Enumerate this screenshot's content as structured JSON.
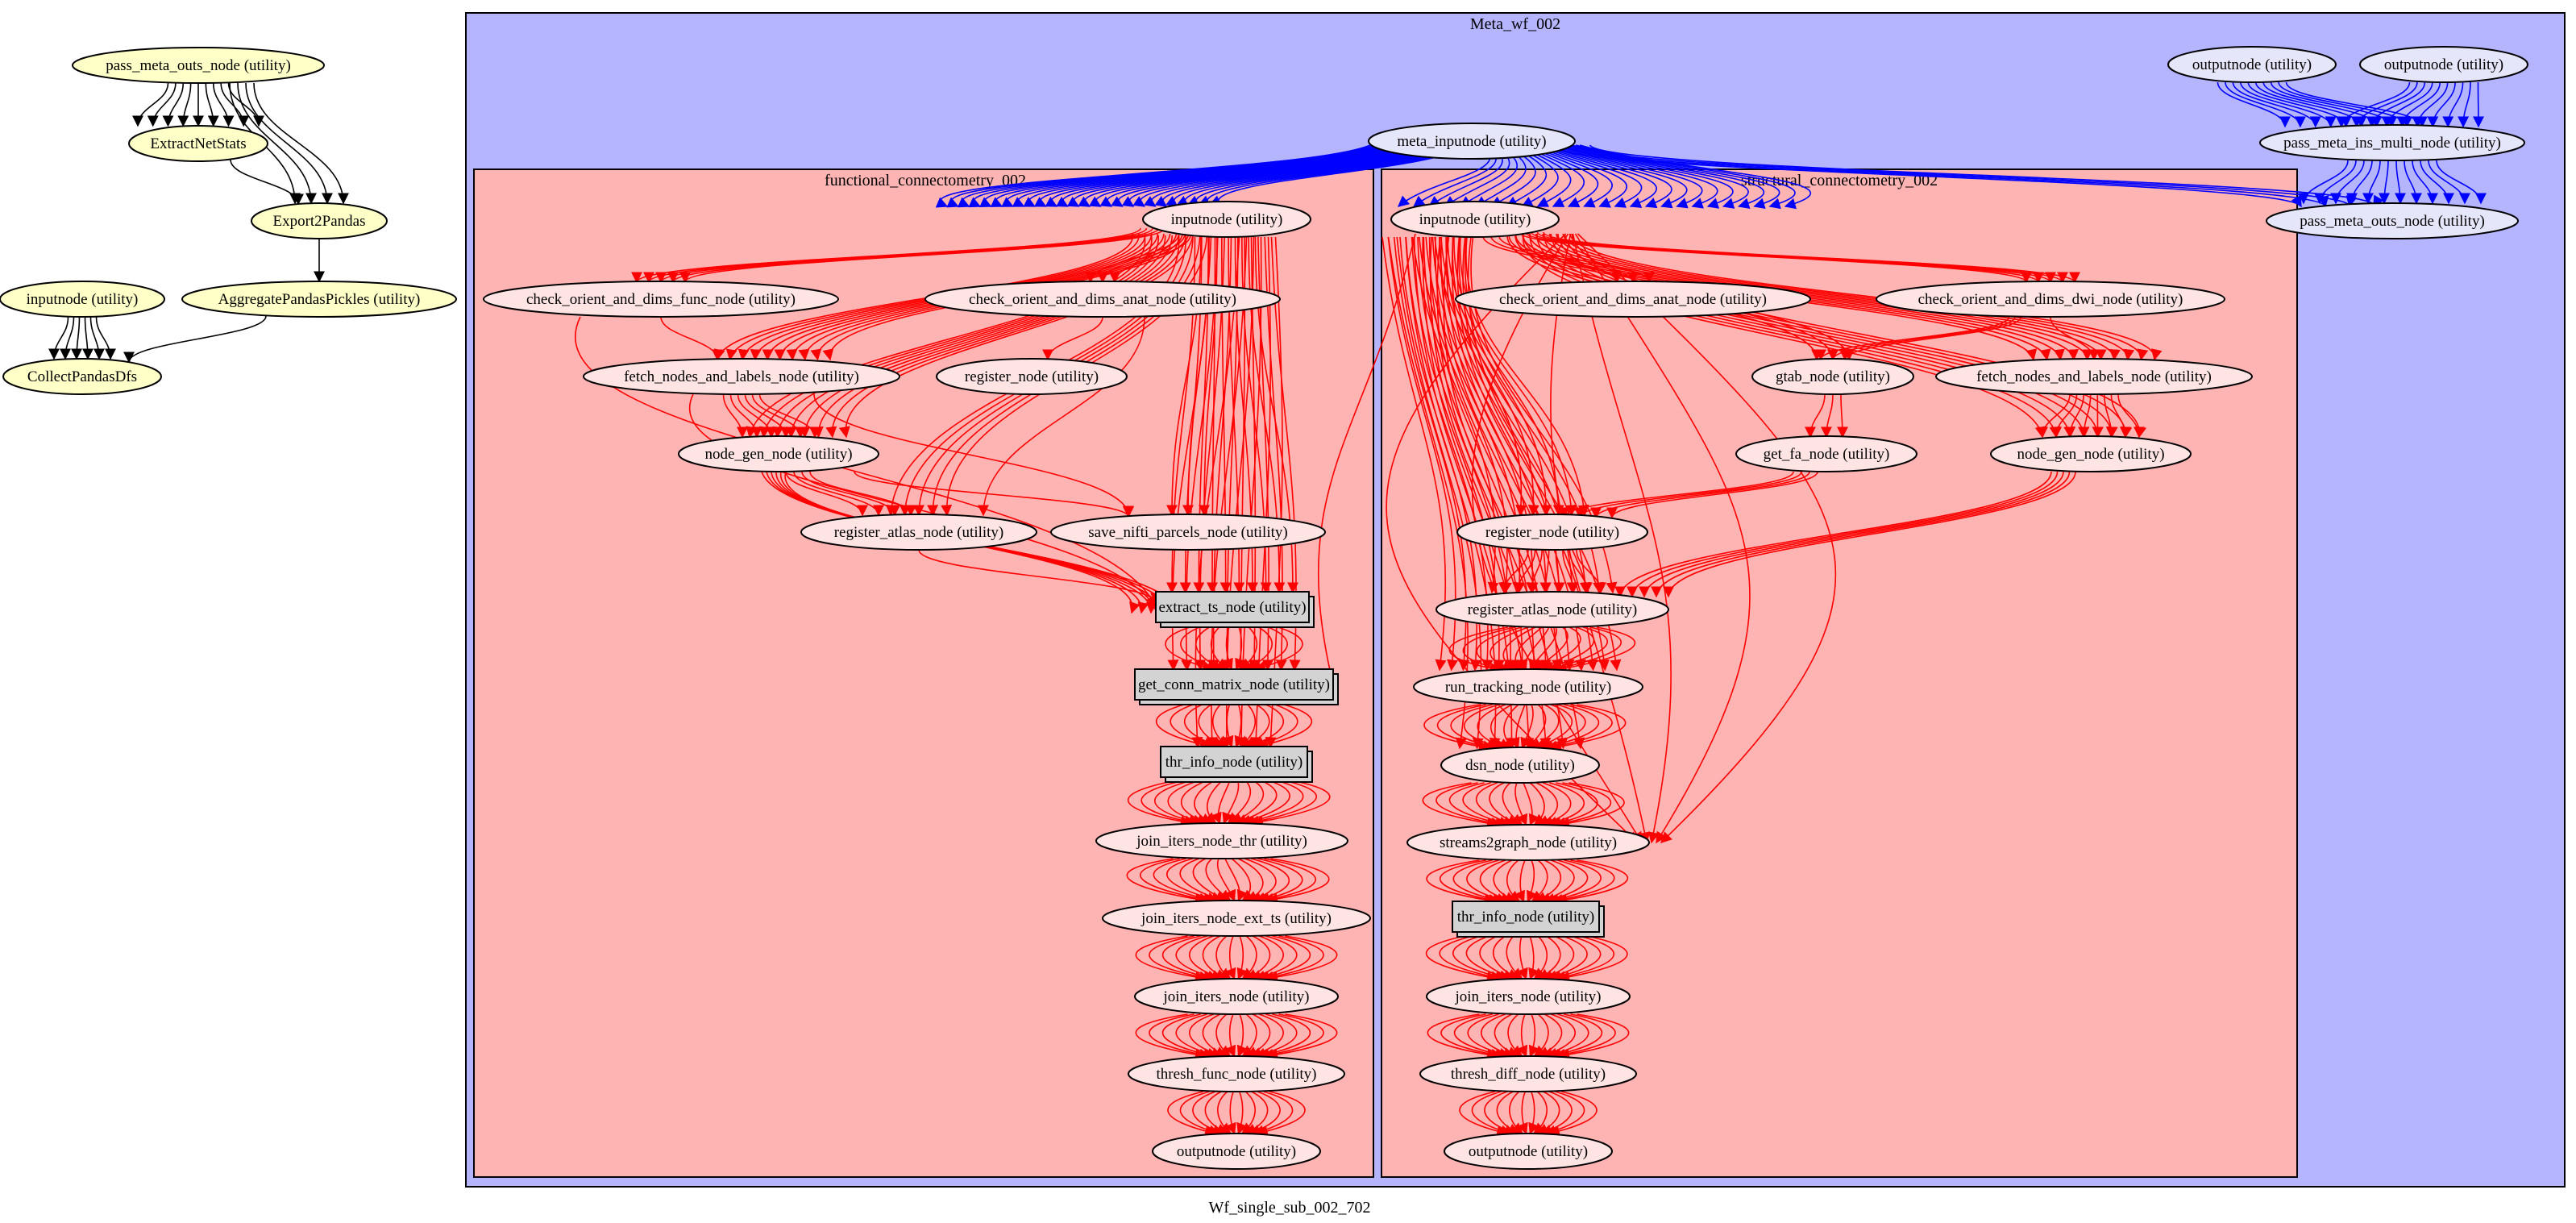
{
  "graph": {
    "label": "Wf_single_sub_002_702",
    "colors": {
      "outer_cluster_fill": "#b4b4ff",
      "inner_cluster_fill": "#ffb4b4",
      "node_yellow": "#ffffc8",
      "node_lavender": "#e6e6fa",
      "node_pink": "#ffe4e4",
      "node_gray": "#d3d3d3",
      "edge_black": "#000000",
      "edge_blue": "#0000ff",
      "edge_red": "#ff0000"
    },
    "clusters": {
      "meta": "Meta_wf_002",
      "functional": "functional_connectometry_002",
      "structural": "structural_connectometry_002"
    },
    "nodes": {
      "pass_meta_outs_left": "pass_meta_outs_node (utility)",
      "extract_net_stats": "ExtractNetStats",
      "export2pandas": "Export2Pandas",
      "aggregate_pandas_pickles": "AggregatePandasPickles (utility)",
      "inputnode_left": "inputnode (utility)",
      "collect_pandas_dfs": "CollectPandasDfs",
      "meta_inputnode": "meta_inputnode (utility)",
      "outputnode_meta_a": "outputnode (utility)",
      "outputnode_meta_b": "outputnode (utility)",
      "pass_meta_ins_multi": "pass_meta_ins_multi_node (utility)",
      "pass_meta_outs_meta": "pass_meta_outs_node (utility)",
      "f_inputnode": "inputnode (utility)",
      "f_check_orient_func": "check_orient_and_dims_func_node (utility)",
      "f_check_orient_anat": "check_orient_and_dims_anat_node (utility)",
      "f_fetch_nodes": "fetch_nodes_and_labels_node (utility)",
      "f_register_node": "register_node (utility)",
      "f_node_gen": "node_gen_node (utility)",
      "f_register_atlas": "register_atlas_node (utility)",
      "f_save_nifti": "save_nifti_parcels_node (utility)",
      "f_extract_ts": "extract_ts_node (utility)",
      "f_get_conn_matrix": "get_conn_matrix_node (utility)",
      "f_thr_info": "thr_info_node (utility)",
      "f_join_iters_thr": "join_iters_node_thr (utility)",
      "f_join_iters_ext_ts": "join_iters_node_ext_ts (utility)",
      "f_join_iters": "join_iters_node (utility)",
      "f_thresh_func": "thresh_func_node (utility)",
      "f_outputnode": "outputnode (utility)",
      "s_inputnode": "inputnode (utility)",
      "s_check_orient_anat": "check_orient_and_dims_anat_node (utility)",
      "s_check_orient_dwi": "check_orient_and_dims_dwi_node (utility)",
      "s_gtab": "gtab_node (utility)",
      "s_fetch_nodes": "fetch_nodes_and_labels_node (utility)",
      "s_get_fa": "get_fa_node (utility)",
      "s_node_gen": "node_gen_node (utility)",
      "s_register_node": "register_node (utility)",
      "s_register_atlas": "register_atlas_node (utility)",
      "s_run_tracking": "run_tracking_node (utility)",
      "s_dsn": "dsn_node (utility)",
      "s_streams2graph": "streams2graph_node (utility)",
      "s_thr_info": "thr_info_node (utility)",
      "s_join_iters": "join_iters_node (utility)",
      "s_thresh_diff": "thresh_diff_node (utility)",
      "s_outputnode": "outputnode (utility)"
    }
  }
}
